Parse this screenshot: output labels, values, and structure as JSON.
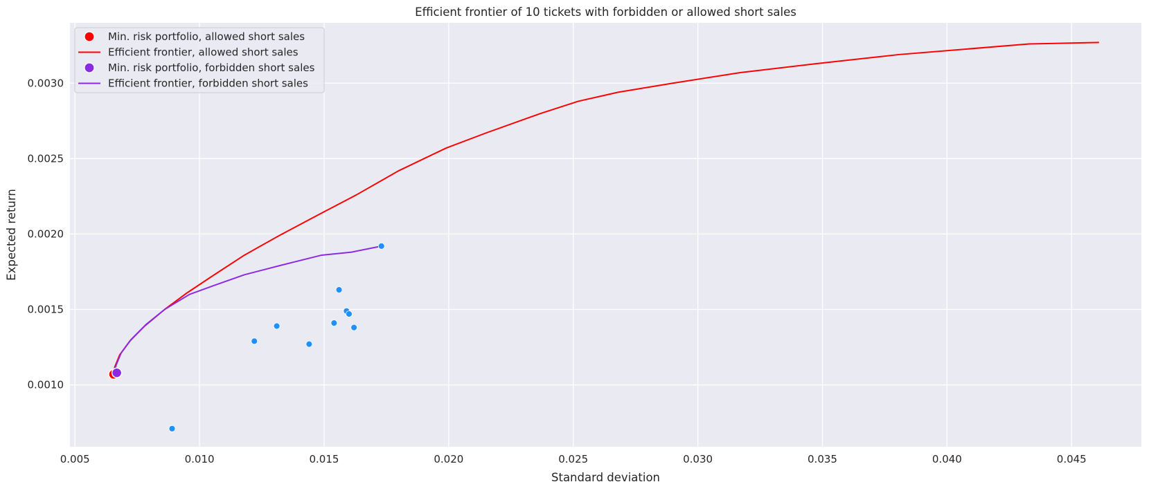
{
  "chart_data": {
    "type": "scatter",
    "title": "Efficient frontier of 10 tickets with forbidden or allowed short sales",
    "xlabel": "Standard deviation",
    "ylabel": "Expected return",
    "xlim": [
      0.0048,
      0.0478
    ],
    "ylim": [
      0.00059,
      0.0034
    ],
    "x_ticks": [
      0.005,
      0.01,
      0.015,
      0.02,
      0.025,
      0.03,
      0.035,
      0.04,
      0.045
    ],
    "x_tick_labels": [
      "0.005",
      "0.010",
      "0.015",
      "0.020",
      "0.025",
      "0.030",
      "0.035",
      "0.040",
      "0.045"
    ],
    "y_ticks": [
      0.001,
      0.0015,
      0.002,
      0.0025,
      0.003
    ],
    "y_tick_labels": [
      "0.0010",
      "0.0015",
      "0.0020",
      "0.0025",
      "0.0030"
    ],
    "grid": true,
    "legend_position": "top-left",
    "legend": [
      {
        "label": "Min. risk portfolio, allowed short sales",
        "marker": "dot",
        "color": "#ff0000"
      },
      {
        "label": "Efficient frontier, allowed short sales",
        "marker": "line",
        "color": "#ff0000"
      },
      {
        "label": "Min. risk portfolio, forbidden short sales",
        "marker": "dot",
        "color": "#8a2be2"
      },
      {
        "label": "Efficient frontier, forbidden short sales",
        "marker": "line",
        "color": "#8a2be2"
      }
    ],
    "assets": {
      "color": "#1e90ff",
      "points": [
        {
          "x": 0.0089,
          "y": 0.00071
        },
        {
          "x": 0.0122,
          "y": 0.00129
        },
        {
          "x": 0.0131,
          "y": 0.00139
        },
        {
          "x": 0.0144,
          "y": 0.00127
        },
        {
          "x": 0.0154,
          "y": 0.00141
        },
        {
          "x": 0.0156,
          "y": 0.00163
        },
        {
          "x": 0.0159,
          "y": 0.00149
        },
        {
          "x": 0.016,
          "y": 0.00147
        },
        {
          "x": 0.0162,
          "y": 0.00138
        },
        {
          "x": 0.0173,
          "y": 0.00192
        }
      ]
    },
    "series": [
      {
        "name": "Efficient frontier, allowed short sales",
        "color": "#ff0000",
        "points": [
          [
            0.00655,
            0.00107
          ],
          [
            0.0066,
            0.00112
          ],
          [
            0.0068,
            0.0012
          ],
          [
            0.0072,
            0.00129
          ],
          [
            0.0078,
            0.00139
          ],
          [
            0.0086,
            0.0015
          ],
          [
            0.0095,
            0.00161
          ],
          [
            0.0105,
            0.00172
          ],
          [
            0.0118,
            0.00186
          ],
          [
            0.0132,
            0.00199
          ],
          [
            0.0148,
            0.00213
          ],
          [
            0.0163,
            0.00226
          ],
          [
            0.018,
            0.00242
          ],
          [
            0.0199,
            0.00257
          ],
          [
            0.0215,
            0.00267
          ],
          [
            0.0237,
            0.0028
          ],
          [
            0.0252,
            0.00288
          ],
          [
            0.0268,
            0.00294
          ],
          [
            0.029,
            0.003
          ],
          [
            0.0317,
            0.00307
          ],
          [
            0.0348,
            0.00313
          ],
          [
            0.0381,
            0.00319
          ],
          [
            0.0433,
            0.00326
          ],
          [
            0.0461,
            0.00327
          ]
        ]
      },
      {
        "name": "Efficient frontier, forbidden short sales",
        "color": "#8a2be2",
        "points": [
          [
            0.0066,
            0.00108
          ],
          [
            0.00665,
            0.00113
          ],
          [
            0.00685,
            0.00121
          ],
          [
            0.00725,
            0.0013
          ],
          [
            0.00785,
            0.0014
          ],
          [
            0.0086,
            0.0015
          ],
          [
            0.0096,
            0.0016
          ],
          [
            0.0106,
            0.00166
          ],
          [
            0.0118,
            0.00173
          ],
          [
            0.0132,
            0.00179
          ],
          [
            0.0149,
            0.00186
          ],
          [
            0.0161,
            0.00188
          ],
          [
            0.0173,
            0.00192
          ]
        ]
      }
    ],
    "min_risk_points": [
      {
        "name": "Min. risk portfolio, allowed short sales",
        "x": 0.00655,
        "y": 0.00107,
        "color": "#ff0000"
      },
      {
        "name": "Min. risk portfolio, forbidden short sales",
        "x": 0.00668,
        "y": 0.00108,
        "color": "#8a2be2"
      }
    ]
  },
  "style": {
    "plot_bg": "#eaeaf2",
    "grid_color": "#ffffff",
    "text_color": "#262626"
  }
}
